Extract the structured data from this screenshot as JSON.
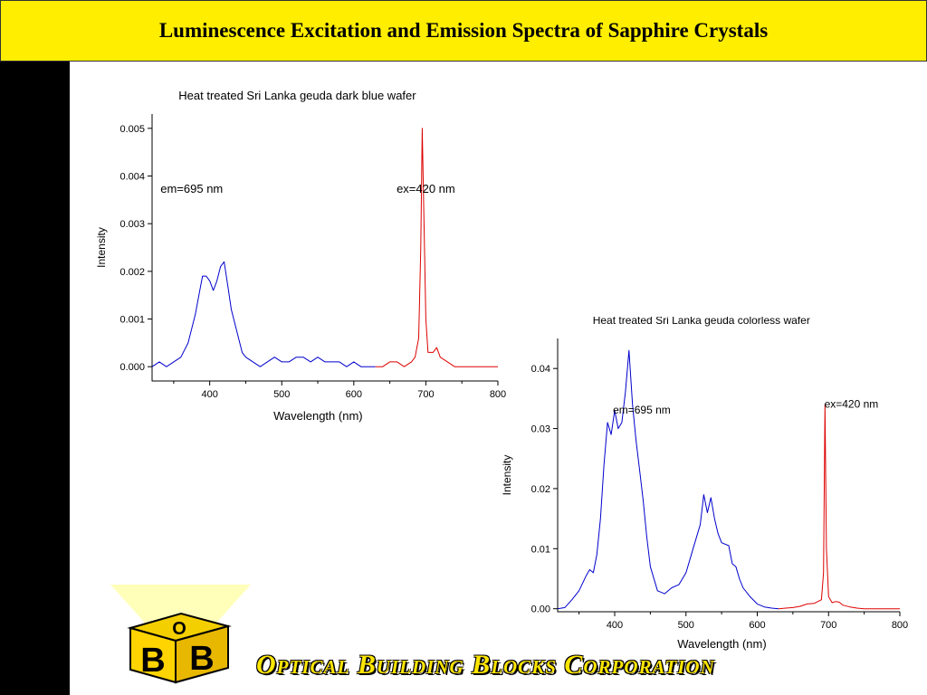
{
  "slide": {
    "title": "Luminescence Excitation and Emission Spectra of Sapphire Crystals",
    "company": "Optical Building Blocks Corporation",
    "logo_letters": [
      "O",
      "B",
      "B"
    ]
  },
  "colors": {
    "title_bg": "#ffee00",
    "left_band": "#000000",
    "excitation": "#0000cc",
    "emission": "#dd0000"
  },
  "chart_data": [
    {
      "type": "line",
      "title": "Heat treated Sri Lanka geuda dark blue wafer",
      "xlabel": "Wavelength (nm)",
      "ylabel": "Intensity",
      "xlim": [
        320,
        800
      ],
      "ylim": [
        -0.0003,
        0.0053
      ],
      "xticks": [
        400,
        500,
        600,
        700,
        800
      ],
      "xtick_labels": [
        "400",
        "500",
        "600",
        "700",
        "800"
      ],
      "yticks": [
        0,
        0.001,
        0.002,
        0.003,
        0.004,
        0.005
      ],
      "ytick_labels": [
        "0.000",
        "0.001",
        "0.002",
        "0.003",
        "0.004",
        "0.005"
      ],
      "annotations": [
        {
          "text": "em=695 nm",
          "x": 375,
          "y": 0.00365
        },
        {
          "text": "ex=420 nm",
          "x": 700,
          "y": 0.00365
        }
      ],
      "series": [
        {
          "color": "#0000cc",
          "x": [
            320,
            330,
            340,
            350,
            360,
            370,
            380,
            385,
            390,
            395,
            400,
            405,
            410,
            415,
            420,
            425,
            430,
            435,
            440,
            445,
            450,
            460,
            470,
            480,
            490,
            500,
            510,
            520,
            530,
            540,
            550,
            560,
            570,
            580,
            590,
            600,
            610,
            620,
            630
          ],
          "y": [
            0.0,
            0.0001,
            0.0,
            0.0001,
            0.0002,
            0.0005,
            0.0011,
            0.0015,
            0.0019,
            0.0019,
            0.0018,
            0.0016,
            0.0018,
            0.0021,
            0.0022,
            0.0017,
            0.0012,
            0.0009,
            0.0006,
            0.0003,
            0.0002,
            0.0001,
            0.0,
            0.0001,
            0.0002,
            0.0001,
            0.0001,
            0.0002,
            0.0002,
            0.0001,
            0.0002,
            0.0001,
            0.0001,
            0.0001,
            0.0,
            0.0001,
            0.0,
            0.0,
            0.0
          ]
        },
        {
          "color": "#dd0000",
          "x": [
            630,
            640,
            650,
            660,
            670,
            680,
            685,
            690,
            693,
            695,
            697,
            700,
            703,
            710,
            715,
            720,
            730,
            740,
            750,
            760,
            770,
            780,
            790,
            800
          ],
          "y": [
            0.0,
            0.0,
            0.0001,
            0.0001,
            0.0,
            0.0001,
            0.0002,
            0.0006,
            0.0025,
            0.005,
            0.0034,
            0.001,
            0.0003,
            0.0003,
            0.0004,
            0.0002,
            0.0001,
            0.0,
            0.0,
            0.0,
            0.0,
            0.0,
            0.0,
            0.0
          ]
        }
      ]
    },
    {
      "type": "line",
      "title": "Heat treated Sri Lanka geuda colorless wafer",
      "xlabel": "Wavelength (nm)",
      "ylabel": "Intensity",
      "xlim": [
        320,
        800
      ],
      "ylim": [
        -0.0005,
        0.045
      ],
      "xticks": [
        400,
        500,
        600,
        700,
        800
      ],
      "xtick_labels": [
        "400",
        "500",
        "600",
        "700",
        "800"
      ],
      "yticks": [
        0,
        0.01,
        0.02,
        0.03,
        0.04
      ],
      "ytick_labels": [
        "0.00",
        "0.01",
        "0.02",
        "0.03",
        "0.04"
      ],
      "annotations": [
        {
          "text": "em=695 nm",
          "x": 438,
          "y": 0.0325
        },
        {
          "text": "ex=420 nm",
          "x": 732,
          "y": 0.0335
        }
      ],
      "series": [
        {
          "color": "#0000cc",
          "x": [
            320,
            330,
            340,
            350,
            360,
            365,
            370,
            375,
            380,
            385,
            390,
            395,
            400,
            405,
            410,
            415,
            420,
            425,
            430,
            435,
            440,
            445,
            450,
            460,
            470,
            480,
            490,
            500,
            510,
            520,
            525,
            530,
            535,
            540,
            545,
            550,
            560,
            565,
            570,
            575,
            580,
            590,
            600,
            610,
            620,
            630
          ],
          "y": [
            0.0,
            0.0002,
            0.0015,
            0.003,
            0.0055,
            0.0065,
            0.006,
            0.009,
            0.015,
            0.024,
            0.031,
            0.029,
            0.033,
            0.03,
            0.031,
            0.036,
            0.043,
            0.034,
            0.028,
            0.023,
            0.018,
            0.012,
            0.007,
            0.003,
            0.0025,
            0.0035,
            0.004,
            0.006,
            0.01,
            0.014,
            0.019,
            0.016,
            0.0185,
            0.015,
            0.0125,
            0.011,
            0.0105,
            0.0075,
            0.007,
            0.005,
            0.0035,
            0.002,
            0.0008,
            0.0003,
            0.0001,
            0.0
          ]
        },
        {
          "color": "#dd0000",
          "x": [
            630,
            640,
            650,
            660,
            670,
            680,
            690,
            693,
            695,
            697,
            700,
            705,
            710,
            715,
            720,
            730,
            740,
            750,
            760,
            770,
            780,
            790,
            800
          ],
          "y": [
            0.0,
            0.0001,
            0.0002,
            0.0004,
            0.0008,
            0.0009,
            0.0015,
            0.006,
            0.034,
            0.01,
            0.002,
            0.001,
            0.0012,
            0.0011,
            0.0006,
            0.0003,
            0.0001,
            0.0,
            0.0,
            0.0,
            0.0,
            0.0,
            0.0
          ]
        }
      ]
    }
  ]
}
